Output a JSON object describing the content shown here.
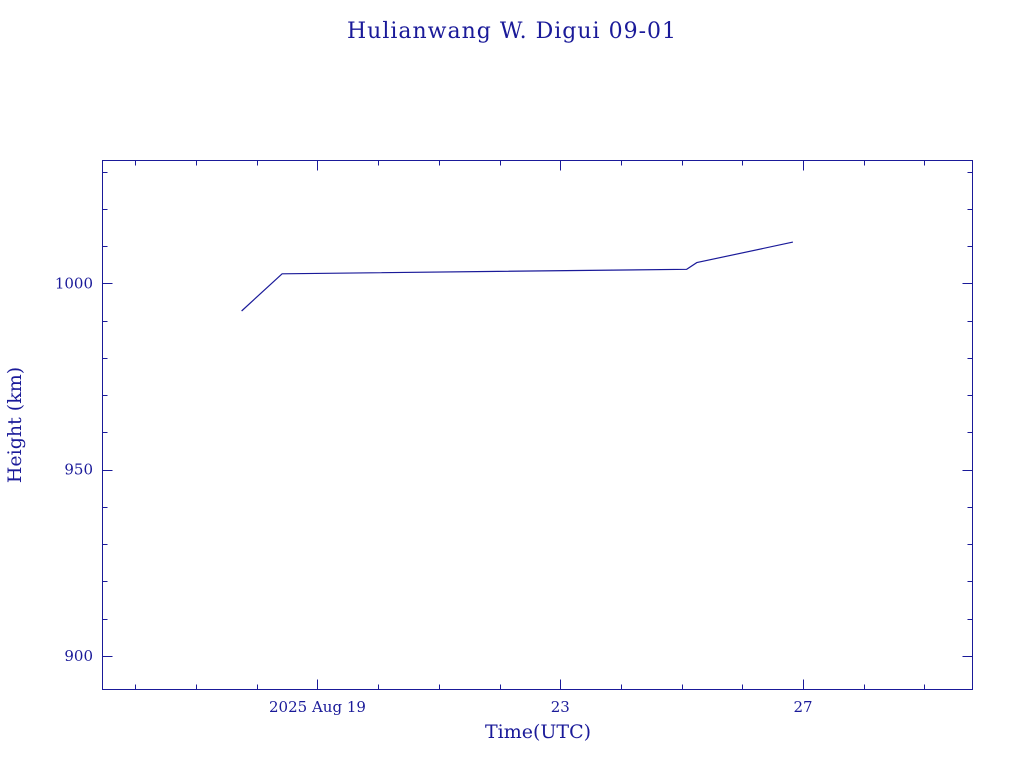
{
  "chart_data": {
    "type": "line",
    "title": "Hulianwang W. Digui 09-01",
    "xlabel": "Time(UTC)",
    "ylabel": "Height (km)",
    "x_ticks": [
      "2025 Aug 19",
      "23",
      "27"
    ],
    "y_ticks": [
      "900",
      "950",
      "1000"
    ],
    "xlim": [
      "2025-08-15T11:00",
      "2025-08-29T19:00"
    ],
    "ylim": [
      891,
      1033
    ],
    "grid": false,
    "legend": "none",
    "series": [
      {
        "x": [
          "2025-08-17T18:00",
          "2025-08-18T10:00",
          "2025-08-25T02:00",
          "2025-08-25T06:00",
          "2025-08-26T20:00"
        ],
        "y": [
          992.6,
          1002.6,
          1003.8,
          1005.6,
          1011.1
        ]
      }
    ],
    "color": "#1a1a99"
  }
}
